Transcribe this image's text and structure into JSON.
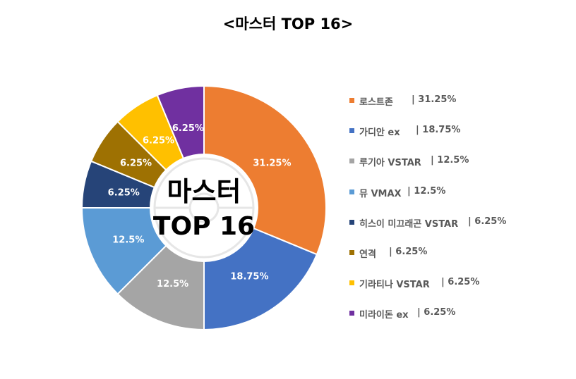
{
  "chart_data": {
    "type": "pie",
    "title": "<마스터 TOP 16>",
    "center_label": [
      "마스터",
      "TOP 16"
    ],
    "legend_position": "right",
    "slices": [
      {
        "name": "로스트존",
        "value": 31.25,
        "label": "31.25%",
        "legend_value": "31.25%",
        "color": "#ED7D31"
      },
      {
        "name": "가디안 ex",
        "value": 18.75,
        "label": "18.75%",
        "legend_value": "18.75%",
        "color": "#4472C4"
      },
      {
        "name": "루기아 VSTAR",
        "value": 12.5,
        "label": "12.5%",
        "legend_value": "12.5%",
        "color": "#A5A5A5"
      },
      {
        "name": "뮤 VMAX",
        "value": 12.5,
        "label": "12.5%",
        "legend_value": "12.5%",
        "color": "#5B9BD5"
      },
      {
        "name": "히스이 미끄래곤 VSTAR",
        "value": 6.25,
        "label": "6.25%",
        "legend_value": "6.25%",
        "color": "#264478"
      },
      {
        "name": "연격",
        "value": 6.25,
        "label": "6.25%",
        "legend_value": "6.25%",
        "color": "#9E7102"
      },
      {
        "name": "기라티나 VSTAR",
        "value": 6.25,
        "label": "6.25%",
        "legend_value": "6.25%",
        "color": "#FFC000"
      },
      {
        "name": "미라이돈 ex",
        "value": 6.25,
        "label": "6.25%",
        "legend_value": "6.25%",
        "color": "#7030A0"
      }
    ]
  }
}
